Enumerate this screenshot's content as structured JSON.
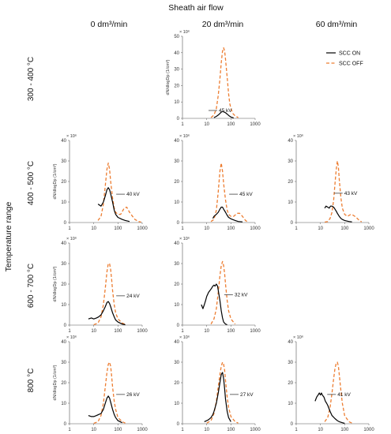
{
  "figure": {
    "header": "Sheath air flow",
    "row_axis_label": "Temperature range",
    "columns": [
      "0 dm³/min",
      "20 dm³/min",
      "60 dm³/min"
    ],
    "rows": [
      "300 - 400 °C",
      "400 - 500 °C",
      "600 - 700 °C",
      "800 °C"
    ],
    "legend": {
      "on": "SCC ON",
      "off": "SCC OFF"
    },
    "colors": {
      "on": "#000000",
      "off": "#ED7D31"
    }
  },
  "chart_data": [
    {
      "type": "line",
      "row": 0,
      "col": 1,
      "annotation": "45 kV",
      "ylabel": "dN/dlogDp (1/cm³)",
      "xlabel": "",
      "y_multiplier": "× 10⁶",
      "show_legend": true,
      "xscale": "log",
      "xlim": [
        1,
        1000
      ],
      "ylim": [
        0,
        50
      ],
      "yticks": [
        0,
        10,
        20,
        30,
        40,
        50
      ],
      "series": [
        {
          "name": "SCC ON",
          "x": [
            20,
            25,
            30,
            35,
            40,
            45,
            50,
            60,
            70,
            85,
            100,
            130
          ],
          "y": [
            0.5,
            1.2,
            2,
            3,
            3.8,
            4.2,
            4,
            3.4,
            2.6,
            1.5,
            0.8,
            0.3
          ]
        },
        {
          "name": "SCC OFF",
          "x": [
            15,
            20,
            25,
            30,
            35,
            40,
            45,
            50,
            55,
            60,
            70,
            80,
            90,
            100,
            120,
            150,
            200
          ],
          "y": [
            0.5,
            2,
            6,
            14,
            24,
            34,
            41,
            43,
            41,
            36,
            25,
            15,
            9,
            6,
            3,
            1.5,
            0.5
          ]
        }
      ]
    },
    {
      "type": "line",
      "row": 1,
      "col": 0,
      "annotation": "40 kV",
      "ylabel": "dN/dlogDp (1/cm³)",
      "xlabel": "",
      "y_multiplier": "× 10⁶",
      "xscale": "log",
      "xlim": [
        1,
        1000
      ],
      "ylim": [
        0,
        40
      ],
      "yticks": [
        0,
        10,
        20,
        30,
        40
      ],
      "series": [
        {
          "name": "SCC ON",
          "x": [
            15,
            20,
            25,
            30,
            35,
            40,
            45,
            50,
            60,
            70,
            80,
            100,
            150,
            200,
            300
          ],
          "y": [
            9,
            8,
            10,
            13,
            16,
            17,
            16,
            14,
            10,
            6,
            4,
            2.5,
            1.5,
            1,
            0.5
          ]
        },
        {
          "name": "SCC OFF",
          "x": [
            15,
            20,
            25,
            30,
            35,
            40,
            45,
            50,
            60,
            70,
            80,
            100,
            130,
            180,
            230,
            300,
            400,
            500,
            700,
            900
          ],
          "y": [
            1,
            3,
            9,
            18,
            26,
            29,
            26,
            20,
            12,
            7,
            5,
            4,
            4,
            7,
            7.5,
            5,
            3,
            1.5,
            0.5,
            0.2
          ]
        }
      ]
    },
    {
      "type": "line",
      "row": 1,
      "col": 1,
      "annotation": "45 kV",
      "ylabel": "",
      "xlabel": "",
      "y_multiplier": "× 10⁶",
      "xscale": "log",
      "xlim": [
        1,
        1000
      ],
      "ylim": [
        0,
        40
      ],
      "yticks": [
        0,
        10,
        20,
        30,
        40
      ],
      "series": [
        {
          "name": "SCC ON",
          "x": [
            18,
            20,
            25,
            30,
            35,
            40,
            45,
            50,
            60,
            70,
            80,
            100,
            150,
            200,
            300
          ],
          "y": [
            2,
            3,
            4,
            5,
            6.5,
            7.5,
            7.5,
            6.5,
            5,
            3.5,
            2.5,
            1.8,
            1,
            0.5,
            0.3
          ]
        },
        {
          "name": "SCC OFF",
          "x": [
            15,
            20,
            25,
            30,
            35,
            40,
            45,
            50,
            60,
            70,
            80,
            100,
            130,
            180,
            230,
            300,
            400,
            500
          ],
          "y": [
            0.5,
            1.5,
            6,
            15,
            25,
            29,
            25,
            19,
            11,
            6,
            4,
            3,
            3,
            4.5,
            4.5,
            3,
            1,
            0.3
          ]
        }
      ]
    },
    {
      "type": "line",
      "row": 1,
      "col": 2,
      "annotation": "43 kV",
      "ylabel": "",
      "xlabel": "",
      "y_multiplier": "× 10⁶",
      "xscale": "log",
      "xlim": [
        1,
        1000
      ],
      "ylim": [
        0,
        40
      ],
      "yticks": [
        0,
        10,
        20,
        30,
        40
      ],
      "series": [
        {
          "name": "SCC ON",
          "x": [
            15,
            17,
            20,
            23,
            26,
            30,
            35,
            40,
            45,
            50,
            60,
            70,
            80,
            100,
            150,
            200
          ],
          "y": [
            7,
            8,
            7.5,
            7,
            8,
            8,
            7.5,
            6.5,
            5.5,
            4.5,
            3,
            2,
            1.5,
            1,
            0.5,
            0.3
          ]
        },
        {
          "name": "SCC OFF",
          "x": [
            15,
            20,
            25,
            30,
            35,
            40,
            45,
            50,
            55,
            60,
            70,
            80,
            100,
            130,
            180,
            230,
            300,
            400,
            500
          ],
          "y": [
            0.2,
            0.5,
            2,
            5,
            11,
            19,
            26,
            30,
            27,
            21,
            12,
            7,
            4,
            3,
            4,
            3.5,
            2.5,
            1,
            0.3
          ]
        }
      ]
    },
    {
      "type": "line",
      "row": 2,
      "col": 0,
      "annotation": "24 kV",
      "ylabel": "dN/dlogDp (1/cm³)",
      "xlabel": "",
      "y_multiplier": "× 10⁶",
      "xscale": "log",
      "xlim": [
        1,
        1000
      ],
      "ylim": [
        0,
        40
      ],
      "yticks": [
        0,
        10,
        20,
        30,
        40
      ],
      "series": [
        {
          "name": "SCC ON",
          "x": [
            6,
            8,
            10,
            13,
            16,
            20,
            25,
            30,
            35,
            40,
            45,
            50,
            60,
            70,
            80,
            100,
            150,
            200
          ],
          "y": [
            3,
            3.5,
            3,
            3.5,
            4,
            5,
            7,
            9,
            11,
            11.5,
            10.5,
            9,
            6,
            4,
            2.5,
            1.5,
            0.5,
            0.2
          ]
        },
        {
          "name": "SCC OFF",
          "x": [
            10,
            15,
            20,
            25,
            30,
            35,
            40,
            45,
            50,
            55,
            60,
            70,
            80,
            100,
            150,
            200
          ],
          "y": [
            0.2,
            1,
            4,
            10,
            18,
            26,
            30,
            30,
            27,
            22,
            17,
            10,
            6,
            3,
            1,
            0.3
          ]
        }
      ]
    },
    {
      "type": "line",
      "row": 2,
      "col": 1,
      "annotation": "32 kV",
      "ylabel": "",
      "xlabel": "",
      "y_multiplier": "× 10⁶",
      "xscale": "log",
      "xlim": [
        1,
        1000
      ],
      "ylim": [
        0,
        40
      ],
      "yticks": [
        0,
        10,
        20,
        30,
        40
      ],
      "series": [
        {
          "name": "SCC ON",
          "x": [
            6,
            7,
            8,
            9,
            10,
            12,
            14,
            16,
            18,
            20,
            22,
            25,
            28,
            30,
            35,
            40,
            45,
            50,
            60,
            70
          ],
          "y": [
            10,
            8,
            10,
            12,
            14,
            16,
            17,
            18,
            19,
            19.5,
            19,
            20,
            19,
            17,
            12,
            7,
            3.5,
            1.5,
            0.5,
            0.2
          ]
        },
        {
          "name": "SCC OFF",
          "x": [
            15,
            20,
            25,
            30,
            35,
            40,
            45,
            50,
            55,
            60,
            70,
            80,
            100,
            150
          ],
          "y": [
            0.5,
            3,
            8,
            16,
            24,
            29,
            31,
            29,
            25,
            20,
            12,
            7,
            3,
            0.5
          ]
        }
      ]
    },
    {
      "type": "line",
      "row": 3,
      "col": 0,
      "annotation": "26 kV",
      "ylabel": "dN/dlogDp (1/cm³)",
      "xlabel": "Particle Diameter (nm)",
      "y_multiplier": "× 10⁶",
      "xscale": "log",
      "xlim": [
        1,
        1000
      ],
      "ylim": [
        0,
        40
      ],
      "yticks": [
        0,
        10,
        20,
        30,
        40
      ],
      "series": [
        {
          "name": "SCC ON",
          "x": [
            6,
            8,
            10,
            13,
            16,
            20,
            25,
            30,
            35,
            40,
            45,
            50,
            60,
            70,
            80,
            100,
            150
          ],
          "y": [
            4,
            3.5,
            3.5,
            4,
            4.5,
            5,
            7,
            10,
            12.5,
            13.5,
            12.5,
            10.5,
            7,
            4.5,
            3,
            1.5,
            0.5
          ]
        },
        {
          "name": "SCC OFF",
          "x": [
            10,
            15,
            20,
            25,
            30,
            35,
            40,
            45,
            50,
            55,
            60,
            70,
            80,
            100,
            150,
            200
          ],
          "y": [
            0.2,
            1,
            4,
            10,
            18,
            25,
            29,
            30,
            28,
            23,
            18,
            11,
            7,
            3,
            1,
            0.3
          ]
        }
      ]
    },
    {
      "type": "line",
      "row": 3,
      "col": 1,
      "annotation": "27 kV",
      "ylabel": "",
      "xlabel": "Particle Diameter (nm)",
      "y_multiplier": "× 10⁶",
      "xscale": "log",
      "xlim": [
        1,
        1000
      ],
      "ylim": [
        0,
        40
      ],
      "yticks": [
        0,
        10,
        20,
        30,
        40
      ],
      "series": [
        {
          "name": "SCC ON",
          "x": [
            8,
            10,
            12,
            15,
            18,
            20,
            25,
            30,
            35,
            40,
            45,
            50,
            55,
            60,
            70,
            80,
            100
          ],
          "y": [
            1,
            1.5,
            2,
            3,
            4.5,
            6,
            10,
            15,
            20,
            24,
            25,
            22,
            17,
            12,
            6,
            3,
            1
          ]
        },
        {
          "name": "SCC OFF",
          "x": [
            10,
            15,
            20,
            25,
            30,
            35,
            40,
            45,
            50,
            55,
            60,
            70,
            80,
            100,
            150,
            200
          ],
          "y": [
            0.3,
            1.5,
            5,
            11,
            18,
            24,
            28,
            30,
            29,
            26,
            21,
            13,
            8,
            3.5,
            1,
            0.3
          ]
        }
      ]
    },
    {
      "type": "line",
      "row": 3,
      "col": 2,
      "annotation": "41 kV",
      "ylabel": "",
      "xlabel": "Particle Diameter (nm)",
      "y_multiplier": "× 10⁶",
      "xscale": "log",
      "xlim": [
        1,
        1000
      ],
      "ylim": [
        0,
        40
      ],
      "yticks": [
        0,
        10,
        20,
        30,
        40
      ],
      "series": [
        {
          "name": "SCC ON",
          "x": [
            6,
            7,
            8,
            9,
            10,
            11,
            12,
            14,
            16,
            18,
            20,
            25,
            30,
            40,
            50,
            60,
            80,
            100
          ],
          "y": [
            11,
            13,
            14,
            15,
            14,
            15,
            14,
            13,
            11,
            10,
            9,
            6,
            4,
            2.5,
            1.5,
            1,
            0.5,
            0.2
          ]
        },
        {
          "name": "SCC OFF",
          "x": [
            15,
            20,
            25,
            30,
            35,
            40,
            45,
            50,
            55,
            60,
            70,
            80,
            100,
            150,
            200
          ],
          "y": [
            1,
            3,
            8,
            15,
            22,
            27,
            29.5,
            30,
            28,
            24,
            16,
            10,
            4,
            1,
            0.3
          ]
        }
      ]
    }
  ]
}
